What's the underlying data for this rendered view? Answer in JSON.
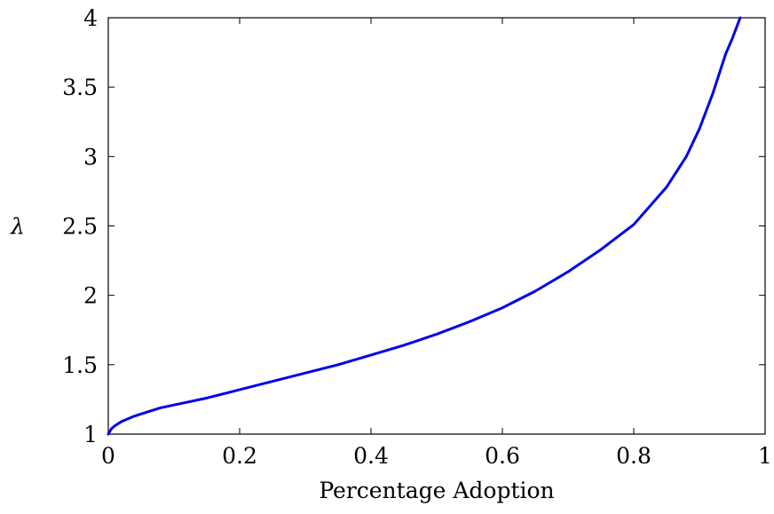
{
  "chart_data": {
    "type": "line",
    "title": "",
    "xlabel": "Percentage Adoption",
    "ylabel": "λ",
    "xlim": [
      0,
      1
    ],
    "ylim": [
      1,
      4
    ],
    "xticks": [
      0,
      0.2,
      0.4,
      0.6,
      0.8,
      1
    ],
    "xtick_labels": [
      "0",
      "0.2",
      "0.4",
      "0.6",
      "0.8",
      "1"
    ],
    "yticks": [
      1,
      1.5,
      2,
      2.5,
      3,
      3.5,
      4
    ],
    "ytick_labels": [
      "1",
      "1.5",
      "2",
      "2.5",
      "3",
      "3.5",
      "4"
    ],
    "grid": false,
    "series": [
      {
        "color": "#0000ee",
        "x": [
          0,
          0.005,
          0.01,
          0.02,
          0.04,
          0.06,
          0.08,
          0.1,
          0.15,
          0.2,
          0.25,
          0.3,
          0.35,
          0.4,
          0.45,
          0.5,
          0.55,
          0.6,
          0.65,
          0.7,
          0.75,
          0.8,
          0.85,
          0.88,
          0.9,
          0.92,
          0.94,
          0.95,
          0.962
        ],
        "y": [
          1.0,
          1.04,
          1.06,
          1.09,
          1.13,
          1.16,
          1.19,
          1.21,
          1.26,
          1.32,
          1.38,
          1.44,
          1.5,
          1.57,
          1.64,
          1.72,
          1.81,
          1.91,
          2.03,
          2.17,
          2.33,
          2.51,
          2.78,
          3.0,
          3.2,
          3.45,
          3.74,
          3.85,
          4.0
        ]
      }
    ]
  }
}
